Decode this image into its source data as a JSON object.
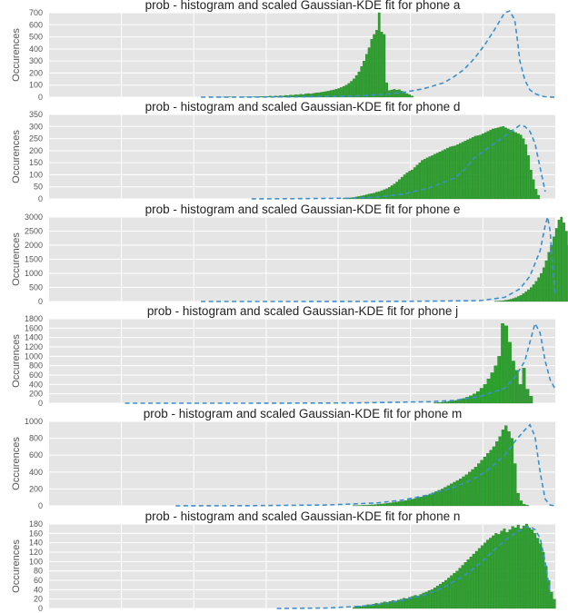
{
  "page": {
    "background": "#ffffff"
  },
  "colors": {
    "panel_bg": "#e5e5e5",
    "grid": "#ffffff",
    "bar": "#2ca02c",
    "kde": "#3b8fd0"
  },
  "chart_data": [
    {
      "type": "bar",
      "title": "prob - histogram and scaled Gaussian-KDE fit for phone a",
      "ylabel": "Occurences",
      "ylim": [
        0,
        700
      ],
      "yticks": [
        0,
        100,
        200,
        300,
        400,
        500,
        600,
        700
      ],
      "xlim": [
        0,
        1
      ],
      "bins": {
        "start": 0.32,
        "width": 0.005
      },
      "values": [
        0,
        0,
        1,
        0,
        1,
        1,
        0,
        2,
        1,
        1,
        0,
        1,
        2,
        1,
        2,
        3,
        2,
        4,
        3,
        5,
        5,
        7,
        5,
        9,
        7,
        10,
        8,
        12,
        9,
        15,
        13,
        18,
        16,
        21,
        19,
        24,
        22,
        27,
        30,
        27,
        31,
        35,
        37,
        40,
        43,
        47,
        51,
        56,
        60,
        66,
        72,
        80,
        90,
        100,
        115,
        132,
        152,
        180,
        210,
        255,
        300,
        355,
        410,
        480,
        520,
        555,
        700,
        540,
        520,
        120,
        55,
        60,
        65,
        58,
        62,
        50,
        40,
        30,
        22,
        10
      ],
      "kde": {
        "x": [
          0.3,
          0.4,
          0.5,
          0.6,
          0.66,
          0.7,
          0.74,
          0.78,
          0.8,
          0.82,
          0.84,
          0.86,
          0.88,
          0.9,
          0.91,
          0.92,
          0.925,
          0.93,
          0.94,
          0.95,
          0.96,
          0.97,
          0.98,
          0.99,
          1.0
        ],
        "y": [
          0,
          1,
          3,
          10,
          22,
          40,
          70,
          120,
          170,
          230,
          320,
          430,
          560,
          700,
          720,
          640,
          480,
          300,
          140,
          60,
          30,
          12,
          4,
          1,
          0
        ]
      }
    },
    {
      "type": "bar",
      "title": "prob - histogram and scaled Gaussian-KDE fit for phone d",
      "ylabel": "Occurences",
      "ylim": [
        0,
        350
      ],
      "yticks": [
        0,
        50,
        100,
        150,
        200,
        250,
        300,
        350
      ],
      "xlim": [
        0,
        1
      ],
      "bins": {
        "start": 0.58,
        "width": 0.005
      },
      "values": [
        2,
        3,
        4,
        5,
        6,
        8,
        10,
        12,
        14,
        17,
        20,
        22,
        24,
        28,
        30,
        34,
        38,
        42,
        48,
        55,
        62,
        70,
        80,
        90,
        100,
        108,
        115,
        120,
        130,
        140,
        150,
        160,
        165,
        170,
        175,
        180,
        185,
        190,
        195,
        200,
        205,
        210,
        215,
        218,
        220,
        225,
        230,
        235,
        240,
        245,
        250,
        255,
        260,
        262,
        265,
        270,
        275,
        280,
        285,
        290,
        292,
        295,
        298,
        300,
        295,
        290,
        285,
        280,
        275,
        270,
        265,
        250,
        225,
        180,
        120,
        80,
        40,
        15
      ],
      "kde": {
        "x": [
          0.4,
          0.5,
          0.6,
          0.65,
          0.7,
          0.75,
          0.8,
          0.82,
          0.84,
          0.86,
          0.88,
          0.9,
          0.92,
          0.93,
          0.94,
          0.95,
          0.96,
          0.97,
          0.98
        ],
        "y": [
          0,
          1,
          3,
          8,
          20,
          45,
          85,
          120,
          170,
          200,
          230,
          260,
          290,
          305,
          300,
          280,
          230,
          130,
          30
        ]
      }
    },
    {
      "type": "bar",
      "title": "prob - histogram and scaled Gaussian-KDE fit for phone e",
      "ylabel": "Occurences",
      "ylim": [
        0,
        3000
      ],
      "yticks": [
        0,
        500,
        1000,
        1500,
        2000,
        2500,
        3000
      ],
      "xlim": [
        0,
        1
      ],
      "bins": {
        "start": 0.88,
        "width": 0.005
      },
      "values": [
        10,
        15,
        20,
        30,
        45,
        60,
        80,
        110,
        140,
        180,
        220,
        280,
        350,
        420,
        500,
        600,
        720,
        850,
        1000,
        1200,
        1450,
        1750,
        2000,
        2300,
        2600,
        2900,
        3000,
        2800,
        2500,
        2000,
        1500,
        1000,
        600,
        300,
        150,
        100,
        80
      ],
      "kde": {
        "x": [
          0.3,
          0.5,
          0.7,
          0.85,
          0.9,
          0.93,
          0.95,
          0.97,
          0.98,
          0.985,
          0.99,
          0.995,
          1.0
        ],
        "y": [
          0,
          0,
          5,
          30,
          150,
          450,
          900,
          1800,
          2700,
          3000,
          2500,
          1200,
          200
        ]
      }
    },
    {
      "type": "bar",
      "title": "prob - histogram and scaled Gaussian-KDE fit for phone j",
      "ylabel": "Occurences",
      "ylim": [
        0,
        1800
      ],
      "yticks": [
        0,
        200,
        400,
        600,
        800,
        1000,
        1200,
        1400,
        1600,
        1800
      ],
      "xlim": [
        0,
        1
      ],
      "bins": {
        "start": 0.76,
        "width": 0.007
      },
      "values": [
        10,
        15,
        20,
        30,
        40,
        50,
        60,
        80,
        100,
        130,
        160,
        200,
        250,
        320,
        400,
        520,
        650,
        800,
        1000,
        1700,
        1650,
        1300,
        900,
        700,
        400,
        750,
        300,
        150
      ],
      "kde": {
        "x": [
          0.15,
          0.4,
          0.6,
          0.75,
          0.8,
          0.85,
          0.9,
          0.92,
          0.94,
          0.95,
          0.96,
          0.97,
          0.98,
          0.99,
          1.0
        ],
        "y": [
          0,
          0,
          5,
          30,
          60,
          140,
          320,
          550,
          900,
          1300,
          1700,
          1500,
          900,
          500,
          300
        ]
      }
    },
    {
      "type": "bar",
      "title": "prob - histogram and scaled Gaussian-KDE fit for phone m",
      "ylabel": "Occurences",
      "ylim": [
        0,
        1000
      ],
      "yticks": [
        0,
        200,
        400,
        600,
        800,
        1000
      ],
      "xlim": [
        0,
        1
      ],
      "bins": {
        "start": 0.6,
        "width": 0.006
      },
      "values": [
        2,
        3,
        5,
        6,
        8,
        10,
        12,
        15,
        18,
        22,
        26,
        30,
        35,
        40,
        45,
        50,
        55,
        62,
        70,
        78,
        85,
        95,
        105,
        115,
        125,
        140,
        155,
        170,
        185,
        200,
        220,
        240,
        260,
        280,
        300,
        320,
        345,
        370,
        400,
        430,
        460,
        500,
        540,
        580,
        620,
        660,
        700,
        760,
        820,
        900,
        950,
        880,
        800,
        500,
        150,
        60,
        20,
        8
      ],
      "kde": {
        "x": [
          0.25,
          0.4,
          0.55,
          0.65,
          0.7,
          0.75,
          0.8,
          0.84,
          0.87,
          0.9,
          0.92,
          0.94,
          0.95,
          0.96,
          0.97,
          0.98,
          0.99,
          1.0
        ],
        "y": [
          0,
          2,
          10,
          35,
          70,
          130,
          220,
          320,
          440,
          600,
          760,
          900,
          960,
          820,
          400,
          80,
          10,
          0
        ]
      }
    },
    {
      "type": "bar",
      "title": "prob - histogram and scaled Gaussian-KDE fit for phone n",
      "ylabel": "Occurences",
      "ylim": [
        0,
        180
      ],
      "yticks": [
        0,
        20,
        40,
        60,
        80,
        100,
        120,
        140,
        160,
        180
      ],
      "xlim": [
        0,
        1
      ],
      "bins": {
        "start": 0.6,
        "width": 0.0055
      },
      "values": [
        2,
        3,
        5,
        4,
        6,
        8,
        7,
        9,
        11,
        10,
        12,
        14,
        13,
        15,
        17,
        16,
        18,
        20,
        22,
        21,
        24,
        26,
        28,
        27,
        30,
        33,
        35,
        38,
        40,
        44,
        48,
        52,
        56,
        60,
        65,
        70,
        75,
        80,
        86,
        92,
        98,
        104,
        110,
        116,
        122,
        128,
        134,
        140,
        146,
        150,
        155,
        160,
        158,
        165,
        170,
        162,
        168,
        175,
        172,
        178,
        170,
        176,
        180,
        172,
        168,
        160,
        150,
        138,
        120,
        90,
        60,
        35,
        20
      ],
      "kde": {
        "x": [
          0.45,
          0.55,
          0.62,
          0.66,
          0.7,
          0.74,
          0.78,
          0.82,
          0.85,
          0.88,
          0.9,
          0.92,
          0.94,
          0.95,
          0.96,
          0.97,
          0.98,
          0.99
        ],
        "y": [
          0,
          1,
          5,
          10,
          18,
          28,
          45,
          70,
          95,
          125,
          145,
          160,
          172,
          175,
          168,
          150,
          100,
          30
        ]
      }
    }
  ]
}
